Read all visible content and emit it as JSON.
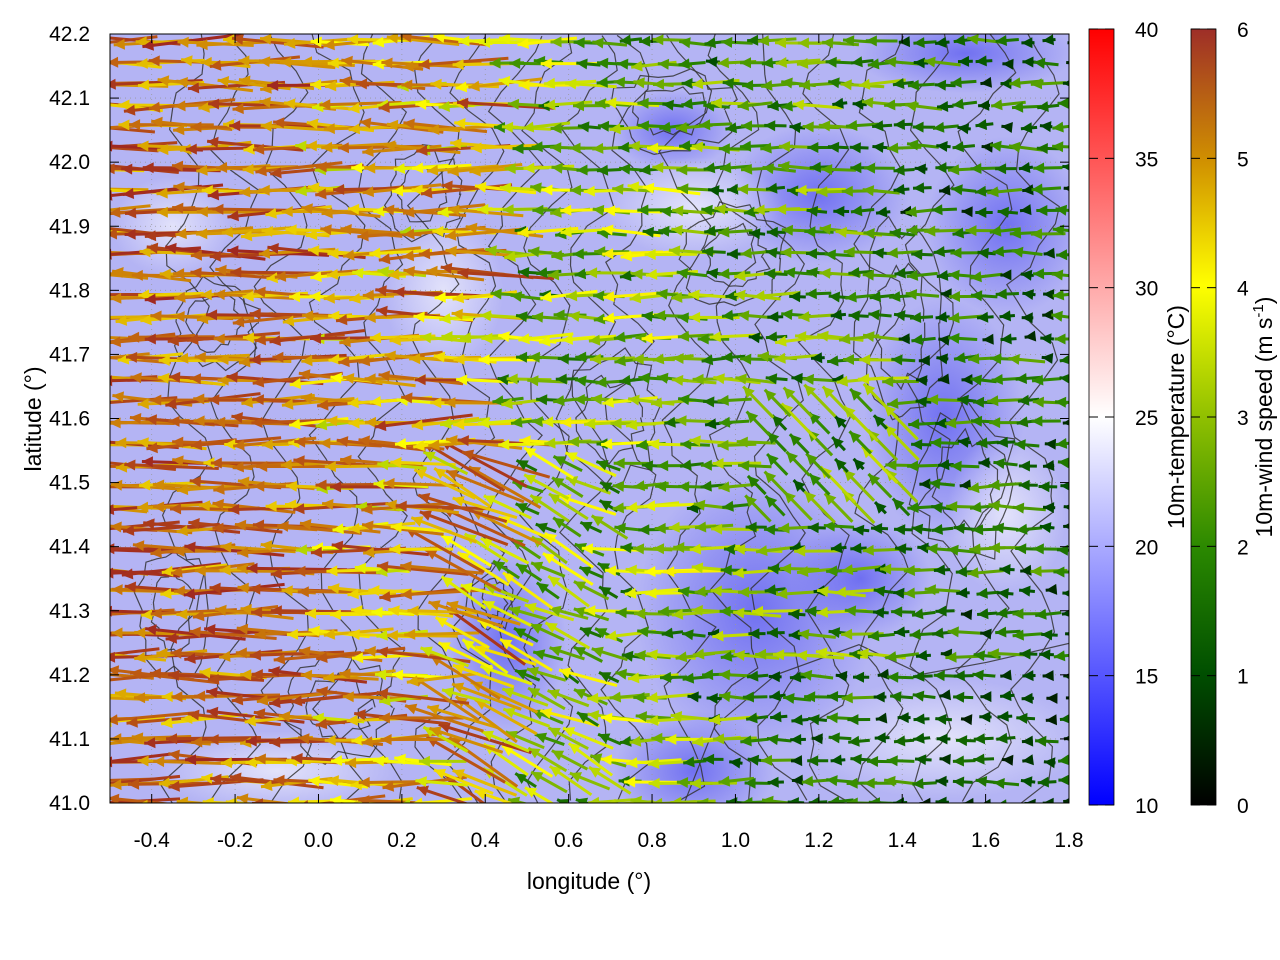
{
  "chart_data": {
    "type": "vector-field-map",
    "xlabel": "longitude (°)",
    "ylabel": "latitude (°)",
    "xlim": [
      -0.5,
      1.8
    ],
    "ylim": [
      41.0,
      42.2
    ],
    "xticks": [
      "-0.4",
      "-0.2",
      "0.0",
      "0.2",
      "0.4",
      "0.6",
      "0.8",
      "1.0",
      "1.2",
      "1.4",
      "1.6",
      "1.8"
    ],
    "yticks": [
      "41.0",
      "41.1",
      "41.2",
      "41.3",
      "41.4",
      "41.5",
      "41.6",
      "41.7",
      "41.8",
      "41.9",
      "42.0",
      "42.1",
      "42.2"
    ],
    "grid": true,
    "contours": true,
    "temperature_colorbar": {
      "label": "10m-temperature (°C)",
      "range": [
        10,
        40
      ],
      "ticks": [
        "10",
        "15",
        "20",
        "25",
        "30",
        "35",
        "40"
      ],
      "colors": [
        "#0000ff",
        "#ffffff",
        "#ff0000"
      ]
    },
    "wind_colorbar": {
      "label_main": "10m-wind speed (m s",
      "label_sup": "-1",
      "label_end": ")",
      "range": [
        0,
        6
      ],
      "ticks": [
        "0",
        "1",
        "2",
        "3",
        "4",
        "5",
        "6"
      ],
      "colors": [
        "#000000",
        "#005000",
        "#2f8a00",
        "#8fc000",
        "#ffff00",
        "#d8a000",
        "#c06010",
        "#a02820"
      ]
    },
    "wind_field_description": {
      "direction": "predominantly easterly (arrows pointing west)",
      "strong_region_lon": [
        -0.5,
        0.45
      ],
      "max_speed": 6
    }
  }
}
